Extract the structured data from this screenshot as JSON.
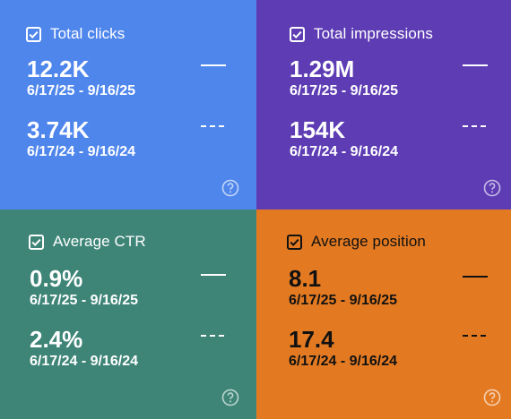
{
  "cards": [
    {
      "title": "Total clicks",
      "color": "#4f86ec",
      "current": {
        "value": "12.2K",
        "range": "6/17/25 - 9/16/25"
      },
      "previous": {
        "value": "3.74K",
        "range": "6/17/24 - 9/16/24"
      },
      "checked": true
    },
    {
      "title": "Total impressions",
      "color": "#5e3db4",
      "current": {
        "value": "1.29M",
        "range": "6/17/25 - 9/16/25"
      },
      "previous": {
        "value": "154K",
        "range": "6/17/24 - 9/16/24"
      },
      "checked": true
    },
    {
      "title": "Average CTR",
      "color": "#3e8578",
      "current": {
        "value": "0.9%",
        "range": "6/17/25 - 9/16/25"
      },
      "previous": {
        "value": "2.4%",
        "range": "6/17/24 - 9/16/24"
      },
      "checked": true
    },
    {
      "title": "Average position",
      "color": "#e37a22",
      "current": {
        "value": "8.1",
        "range": "6/17/25 - 9/16/25"
      },
      "previous": {
        "value": "17.4",
        "range": "6/17/24 - 9/16/24"
      },
      "checked": true
    }
  ],
  "icons": {
    "checkbox": "checkbox-checked-icon",
    "help": "help-circle-icon",
    "legend_current": "solid-line-legend-icon",
    "legend_previous": "dashed-line-legend-icon"
  }
}
